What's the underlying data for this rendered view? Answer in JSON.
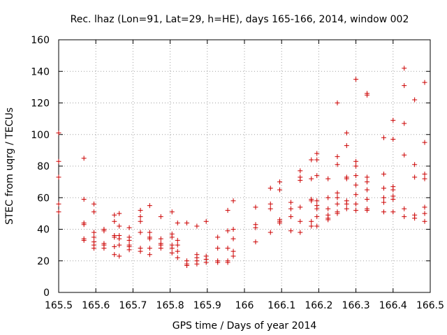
{
  "chart_data": {
    "type": "scatter",
    "title": "Rec. lhaz (Lon=91, Lat=29, h=HE), days 165-166, 2014, window 002",
    "xlabel": "GPS time / Days of year 2014",
    "ylabel": "STEC from uqrg / TECUs",
    "xlim": [
      165.5,
      166.5
    ],
    "ylim": [
      0,
      160
    ],
    "xticks": [
      "165.5",
      "165.6",
      "165.7",
      "165.8",
      "165.9",
      "166",
      "166.1",
      "166.2",
      "166.3",
      "166.4",
      "166.5"
    ],
    "yticks": [
      "0",
      "20",
      "40",
      "60",
      "80",
      "100",
      "120",
      "140",
      "160"
    ],
    "grid": true,
    "marker": "+",
    "color": "#cc0000",
    "points": [
      [
        165.5,
        101
      ],
      [
        165.5,
        83
      ],
      [
        165.5,
        73
      ],
      [
        165.5,
        56
      ],
      [
        165.5,
        51
      ],
      [
        165.568,
        85
      ],
      [
        165.568,
        59
      ],
      [
        165.568,
        44
      ],
      [
        165.568,
        43
      ],
      [
        165.568,
        34
      ],
      [
        165.568,
        33
      ],
      [
        165.595,
        56
      ],
      [
        165.595,
        51
      ],
      [
        165.595,
        38
      ],
      [
        165.595,
        35
      ],
      [
        165.595,
        32
      ],
      [
        165.595,
        30
      ],
      [
        165.595,
        28
      ],
      [
        165.622,
        40
      ],
      [
        165.622,
        39
      ],
      [
        165.622,
        31
      ],
      [
        165.622,
        30
      ],
      [
        165.622,
        28
      ],
      [
        165.65,
        49
      ],
      [
        165.65,
        45
      ],
      [
        165.65,
        36
      ],
      [
        165.65,
        35
      ],
      [
        165.65,
        29
      ],
      [
        165.65,
        24
      ],
      [
        165.663,
        50
      ],
      [
        165.663,
        42
      ],
      [
        165.663,
        36
      ],
      [
        165.663,
        34
      ],
      [
        165.663,
        30
      ],
      [
        165.663,
        23
      ],
      [
        165.69,
        41
      ],
      [
        165.69,
        35
      ],
      [
        165.69,
        33
      ],
      [
        165.69,
        30
      ],
      [
        165.69,
        29
      ],
      [
        165.69,
        27
      ],
      [
        165.72,
        52
      ],
      [
        165.72,
        48
      ],
      [
        165.72,
        45
      ],
      [
        165.72,
        38
      ],
      [
        165.72,
        28
      ],
      [
        165.72,
        26
      ],
      [
        165.745,
        55
      ],
      [
        165.745,
        38
      ],
      [
        165.745,
        35
      ],
      [
        165.745,
        34
      ],
      [
        165.745,
        28
      ],
      [
        165.745,
        24
      ],
      [
        165.775,
        48
      ],
      [
        165.775,
        34
      ],
      [
        165.775,
        31
      ],
      [
        165.775,
        30
      ],
      [
        165.775,
        28
      ],
      [
        165.805,
        51
      ],
      [
        165.805,
        37
      ],
      [
        165.805,
        35
      ],
      [
        165.805,
        30
      ],
      [
        165.805,
        28
      ],
      [
        165.805,
        25
      ],
      [
        165.82,
        44
      ],
      [
        165.82,
        33
      ],
      [
        165.82,
        30
      ],
      [
        165.82,
        26
      ],
      [
        165.82,
        22
      ],
      [
        165.845,
        44
      ],
      [
        165.845,
        20
      ],
      [
        165.845,
        18
      ],
      [
        165.845,
        17
      ],
      [
        165.872,
        42
      ],
      [
        165.872,
        24
      ],
      [
        165.872,
        22
      ],
      [
        165.872,
        20
      ],
      [
        165.872,
        18
      ],
      [
        165.897,
        45
      ],
      [
        165.897,
        23
      ],
      [
        165.897,
        21
      ],
      [
        165.897,
        19
      ],
      [
        165.928,
        35
      ],
      [
        165.928,
        28
      ],
      [
        165.928,
        20
      ],
      [
        165.928,
        19
      ],
      [
        165.955,
        52
      ],
      [
        165.955,
        39
      ],
      [
        165.955,
        28
      ],
      [
        165.955,
        20
      ],
      [
        165.955,
        19
      ],
      [
        165.97,
        58
      ],
      [
        165.97,
        40
      ],
      [
        165.97,
        34
      ],
      [
        165.97,
        26
      ],
      [
        165.97,
        23
      ],
      [
        166.03,
        54
      ],
      [
        166.03,
        43
      ],
      [
        166.03,
        41
      ],
      [
        166.03,
        32
      ],
      [
        166.07,
        66
      ],
      [
        166.07,
        56
      ],
      [
        166.07,
        53
      ],
      [
        166.07,
        38
      ],
      [
        166.095,
        70
      ],
      [
        166.095,
        65
      ],
      [
        166.095,
        46
      ],
      [
        166.095,
        45
      ],
      [
        166.095,
        44
      ],
      [
        166.125,
        57
      ],
      [
        166.125,
        53
      ],
      [
        166.125,
        48
      ],
      [
        166.125,
        39
      ],
      [
        166.15,
        77
      ],
      [
        166.15,
        73
      ],
      [
        166.15,
        71
      ],
      [
        166.15,
        54
      ],
      [
        166.15,
        45
      ],
      [
        166.15,
        38
      ],
      [
        166.18,
        84
      ],
      [
        166.18,
        72
      ],
      [
        166.18,
        59
      ],
      [
        166.18,
        58
      ],
      [
        166.18,
        45
      ],
      [
        166.18,
        42
      ],
      [
        166.195,
        88
      ],
      [
        166.195,
        84
      ],
      [
        166.195,
        74
      ],
      [
        166.195,
        58
      ],
      [
        166.195,
        55
      ],
      [
        166.195,
        53
      ],
      [
        166.195,
        48
      ],
      [
        166.195,
        42
      ],
      [
        166.225,
        72
      ],
      [
        166.225,
        60
      ],
      [
        166.225,
        53
      ],
      [
        166.225,
        49
      ],
      [
        166.225,
        47
      ],
      [
        166.225,
        46
      ],
      [
        166.25,
        120
      ],
      [
        166.25,
        86
      ],
      [
        166.25,
        81
      ],
      [
        166.25,
        63
      ],
      [
        166.25,
        60
      ],
      [
        166.25,
        56
      ],
      [
        166.25,
        51
      ],
      [
        166.25,
        50
      ],
      [
        166.275,
        101
      ],
      [
        166.275,
        93
      ],
      [
        166.275,
        73
      ],
      [
        166.275,
        72
      ],
      [
        166.275,
        58
      ],
      [
        166.275,
        56
      ],
      [
        166.275,
        53
      ],
      [
        166.3,
        135
      ],
      [
        166.3,
        83
      ],
      [
        166.3,
        80
      ],
      [
        166.3,
        74
      ],
      [
        166.3,
        68
      ],
      [
        166.3,
        62
      ],
      [
        166.3,
        56
      ],
      [
        166.3,
        52
      ],
      [
        166.33,
        126
      ],
      [
        166.33,
        125
      ],
      [
        166.33,
        73
      ],
      [
        166.33,
        70
      ],
      [
        166.33,
        65
      ],
      [
        166.33,
        59
      ],
      [
        166.33,
        53
      ],
      [
        166.33,
        52
      ],
      [
        166.375,
        98
      ],
      [
        166.375,
        75
      ],
      [
        166.375,
        66
      ],
      [
        166.375,
        60
      ],
      [
        166.375,
        57
      ],
      [
        166.375,
        51
      ],
      [
        166.4,
        109
      ],
      [
        166.4,
        97
      ],
      [
        166.4,
        67
      ],
      [
        166.4,
        65
      ],
      [
        166.4,
        61
      ],
      [
        166.4,
        59
      ],
      [
        166.4,
        51
      ],
      [
        166.43,
        142
      ],
      [
        166.43,
        131
      ],
      [
        166.43,
        107
      ],
      [
        166.43,
        87
      ],
      [
        166.43,
        53
      ],
      [
        166.43,
        48
      ],
      [
        166.458,
        122
      ],
      [
        166.458,
        81
      ],
      [
        166.458,
        73
      ],
      [
        166.458,
        49
      ],
      [
        166.458,
        47
      ],
      [
        166.485,
        133
      ],
      [
        166.485,
        95
      ],
      [
        166.485,
        75
      ],
      [
        166.485,
        72
      ],
      [
        166.485,
        54
      ],
      [
        166.485,
        50
      ],
      [
        166.485,
        45
      ]
    ]
  }
}
